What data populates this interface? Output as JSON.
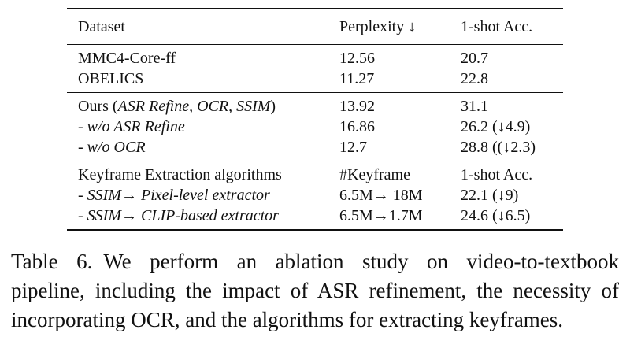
{
  "table": {
    "header": {
      "col1": "Dataset",
      "col2": "Perplexity ↓",
      "col3": "1-shot Acc."
    },
    "group1": [
      {
        "name": "MMC4-Core-ff",
        "perplexity": "12.56",
        "acc": "20.7"
      },
      {
        "name": "OBELICS",
        "perplexity": "11.27",
        "acc": "22.8"
      }
    ],
    "group2": {
      "ours": {
        "name_prefix": "Ours (",
        "name_italic": "ASR Refine, OCR, SSIM",
        "name_suffix": ")",
        "perplexity": "13.92",
        "acc": "31.1"
      },
      "rows": [
        {
          "name": "- w/o ASR Refine",
          "perplexity": "16.86",
          "acc": "26.2 (↓4.9)"
        },
        {
          "name": "- w/o OCR",
          "perplexity": "12.7",
          "acc": "28.8 ((↓2.3)"
        }
      ]
    },
    "group3": {
      "header": {
        "col1": "Keyframe Extraction algorithms",
        "col2": "#Keyframe",
        "col3": "1-shot Acc."
      },
      "rows": [
        {
          "name": "- SSIM→ Pixel-level extractor",
          "keyframe": "6.5M→ 18M",
          "acc": "22.1 (↓9)"
        },
        {
          "name": "- SSIM→ CLIP-based extractor",
          "keyframe": "6.5M→1.7M",
          "acc": "24.6 (↓6.5)"
        }
      ]
    }
  },
  "caption": {
    "label": "Table 6.",
    "line1": "We perform an ablation study on video-to-textbook",
    "line2": "pipeline, including the impact of ASR refinement, the necessity of",
    "line3": "incorporating OCR, and the algorithms for extracting keyframes."
  }
}
